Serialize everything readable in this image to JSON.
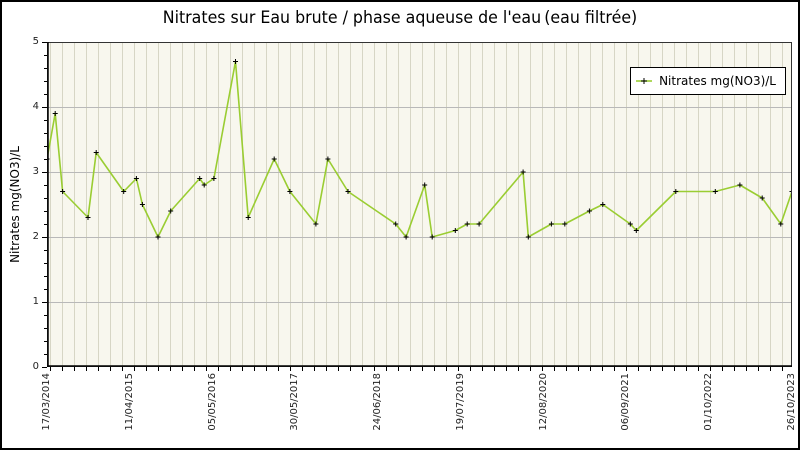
{
  "title": "Nitrates sur Eau brute / phase aqueuse de l'eau (eau filtrée)",
  "colors": {
    "line": "#9ACD32",
    "marker": "#000000",
    "plot_background": "#f8f7ee",
    "grid_vertical": "#d7d6c5",
    "grid_horizontal": "#b9b9b9",
    "axis": "#000000",
    "tick_label": "#222222",
    "legend_shadow": "#7b7b7b",
    "legend_border": "#000000",
    "legend_background": "#ffffff"
  },
  "chart_data": {
    "type": "line",
    "title": "Nitrates sur Eau brute / phase aqueuse de l'eau (eau filtrée)",
    "xlabel": "",
    "ylabel": "Nitrates mg(NO3)/L",
    "ylim": [
      0,
      5
    ],
    "y_major_ticks": [
      0,
      1,
      2,
      3,
      4,
      5
    ],
    "y_minor_tick_step": 0.2,
    "x_tick_labels": [
      "17/03/2014",
      "11/04/2015",
      "05/05/2016",
      "30/05/2017",
      "24/06/2018",
      "19/07/2019",
      "12/08/2020",
      "06/09/2021",
      "01/10/2022",
      "26/10/2023"
    ],
    "x_tick_rotation": -90,
    "grid": {
      "vertical": true,
      "vertical_line_spacing_px": 12,
      "horizontal_values": [
        1,
        2,
        3,
        4
      ]
    },
    "legend": {
      "label": "Nitrates mg(NO3)/L",
      "position": "top-right",
      "marker": "plus-on-line"
    },
    "x_unit": "fraction of time axis from 17/03/2014 to 26/10/2023",
    "series": [
      {
        "name": "Nitrates mg(NO3)/L",
        "color": "#9ACD32",
        "marker": "plus",
        "marker_color": "#000000",
        "points": [
          [
            0.0,
            3.2
          ],
          [
            0.011,
            3.9
          ],
          [
            0.021,
            2.7
          ],
          [
            0.055,
            2.3
          ],
          [
            0.066,
            3.3
          ],
          [
            0.103,
            2.7
          ],
          [
            0.12,
            2.9
          ],
          [
            0.128,
            2.5
          ],
          [
            0.149,
            2.0
          ],
          [
            0.166,
            2.4
          ],
          [
            0.205,
            2.9
          ],
          [
            0.211,
            2.8
          ],
          [
            0.224,
            2.9
          ],
          [
            0.253,
            4.7
          ],
          [
            0.27,
            2.3
          ],
          [
            0.305,
            3.2
          ],
          [
            0.326,
            2.7
          ],
          [
            0.361,
            2.2
          ],
          [
            0.377,
            3.2
          ],
          [
            0.404,
            2.7
          ],
          [
            0.468,
            2.2
          ],
          [
            0.482,
            2.0
          ],
          [
            0.507,
            2.8
          ],
          [
            0.517,
            2.0
          ],
          [
            0.548,
            2.1
          ],
          [
            0.564,
            2.2
          ],
          [
            0.58,
            2.2
          ],
          [
            0.639,
            3.0
          ],
          [
            0.646,
            2.0
          ],
          [
            0.677,
            2.2
          ],
          [
            0.695,
            2.2
          ],
          [
            0.728,
            2.4
          ],
          [
            0.746,
            2.5
          ],
          [
            0.783,
            2.2
          ],
          [
            0.791,
            2.1
          ],
          [
            0.844,
            2.7
          ],
          [
            0.897,
            2.7
          ],
          [
            0.93,
            2.8
          ],
          [
            0.96,
            2.6
          ],
          [
            0.985,
            2.2
          ],
          [
            1.0,
            2.7
          ]
        ]
      }
    ]
  }
}
